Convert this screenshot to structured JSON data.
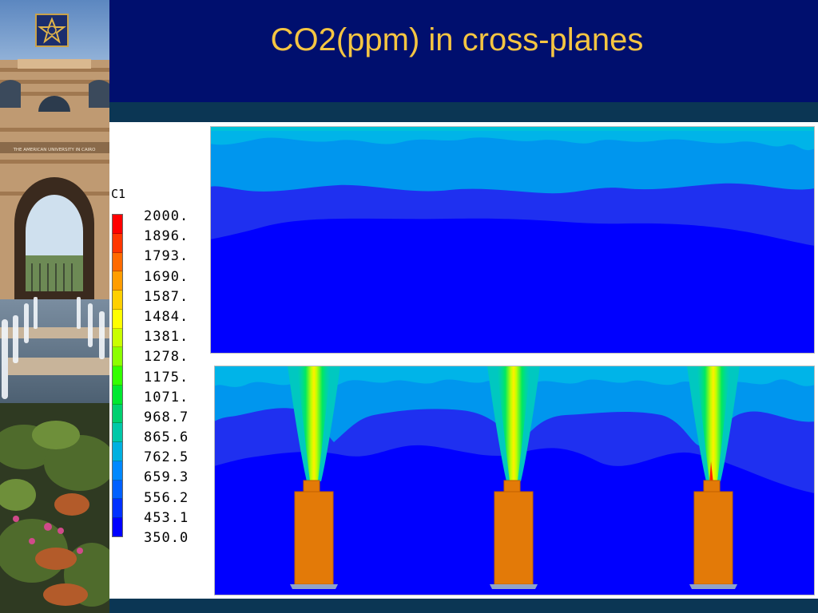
{
  "slide": {
    "title": "CO2(ppm) in cross-planes"
  },
  "sidebar": {
    "logo_icon": "star-emblem-logo",
    "photo": "campus-gate-fountains-photo",
    "banner_text": "THE AMERICAN UNIVERSITY IN CAIRO"
  },
  "legend": {
    "variable": "C1",
    "values": [
      "2000.",
      "1896.",
      "1793.",
      "1690.",
      "1587.",
      "1484.",
      "1381.",
      "1278.",
      "1175.",
      "1071.",
      "968.7",
      "865.6",
      "762.5",
      "659.3",
      "556.2",
      "453.1",
      "350.0"
    ],
    "colors": [
      "#ff0000",
      "#ff3600",
      "#ff6a00",
      "#ff9d00",
      "#ffd000",
      "#ffff00",
      "#c9ff00",
      "#8cff00",
      "#33ff00",
      "#00e830",
      "#00d070",
      "#00c8a8",
      "#00b0e0",
      "#0088ff",
      "#0060ff",
      "#0030ff",
      "#0000ff"
    ]
  },
  "colors": {
    "header_bg": "#000f6e",
    "stripe": "#0b3654",
    "title_color": "#f5c542",
    "source_orange": "#e37a08"
  }
}
